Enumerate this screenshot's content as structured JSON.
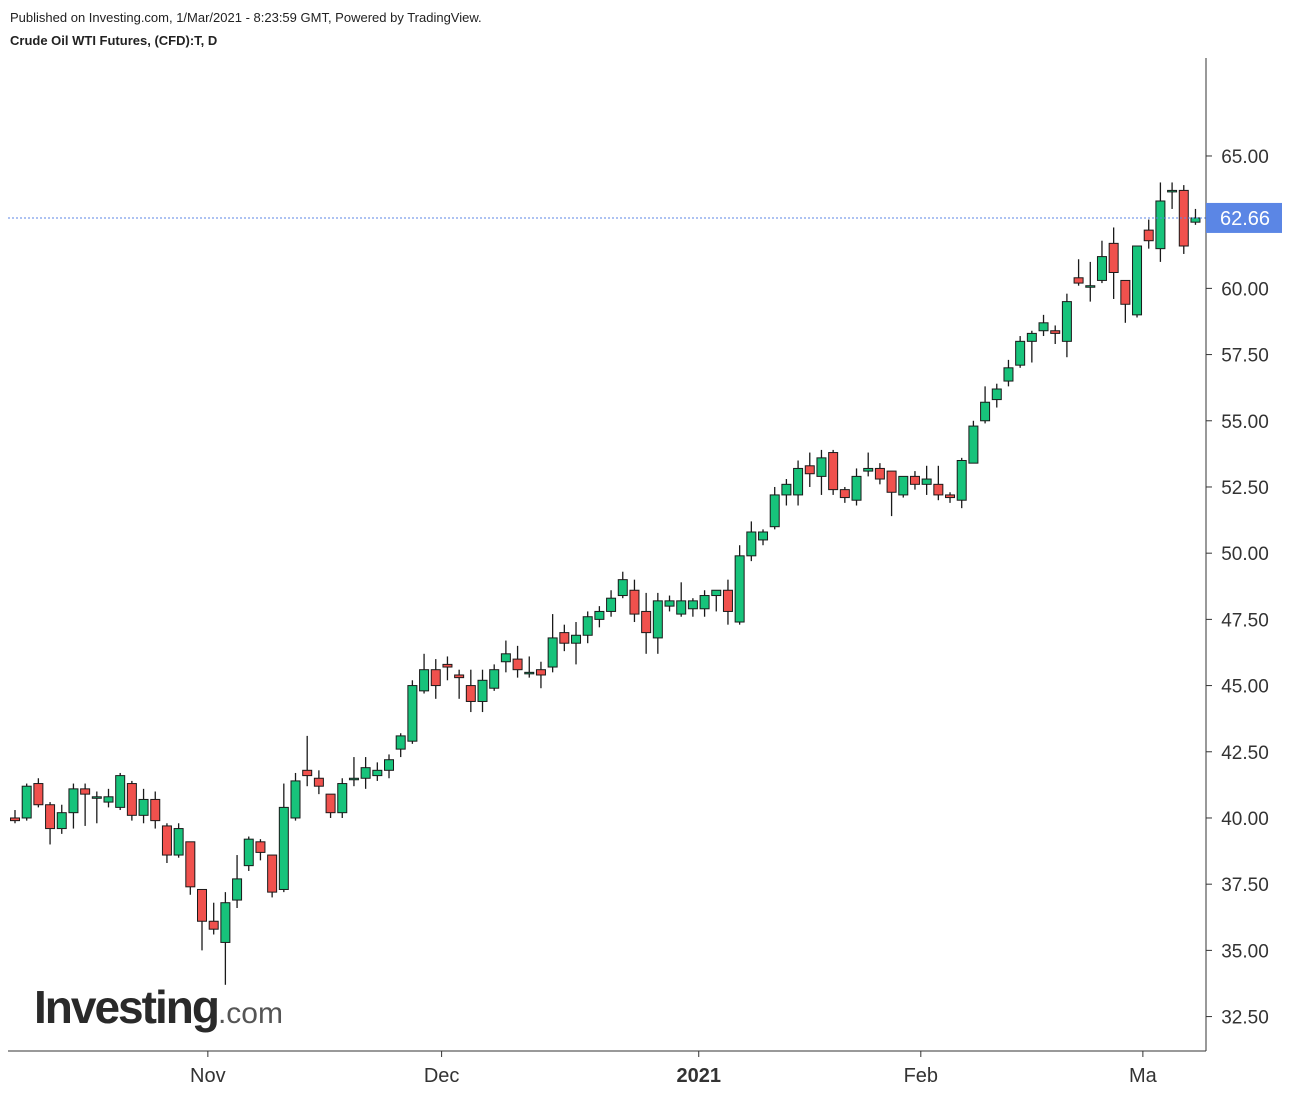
{
  "header": {
    "published": "Published on Investing.com, 1/Mar/2021 - 8:23:59 GMT, Powered by TradingView.",
    "symbol": "Crude Oil WTI Futures, (CFD):T, D"
  },
  "watermark": {
    "brand": "Investing",
    "suffix": ".com"
  },
  "colors": {
    "up": "#17c37b",
    "down": "#f0514d",
    "wick": "#1a1a1a",
    "price_line": "#5b86e5",
    "axis": "#333333"
  },
  "chart_data": {
    "type": "candlestick",
    "title": "Crude Oil WTI Futures, (CFD):T, D",
    "ylim": [
      31.2,
      68.7
    ],
    "y_ticks": [
      "32.50",
      "35.00",
      "37.50",
      "40.00",
      "42.50",
      "45.00",
      "47.50",
      "50.00",
      "52.50",
      "55.00",
      "57.50",
      "60.00",
      "62.50",
      "65.00"
    ],
    "x_labels": [
      {
        "label": "Nov",
        "index": 17,
        "bold": false
      },
      {
        "label": "Dec",
        "index": 37,
        "bold": false
      },
      {
        "label": "2021",
        "index": 59,
        "bold": true
      },
      {
        "label": "Feb",
        "index": 78,
        "bold": false
      },
      {
        "label": "Ma",
        "index": 97,
        "bold": false
      }
    ],
    "last_price": "62.66",
    "candles": [
      [
        40.0,
        40.3,
        39.8,
        39.9
      ],
      [
        40.0,
        41.3,
        39.9,
        41.2
      ],
      [
        41.3,
        41.5,
        40.4,
        40.5
      ],
      [
        40.5,
        40.6,
        39.0,
        39.6
      ],
      [
        39.6,
        40.5,
        39.4,
        40.2
      ],
      [
        40.2,
        41.3,
        39.6,
        41.1
      ],
      [
        41.1,
        41.3,
        39.7,
        40.9
      ],
      [
        40.8,
        41.0,
        39.8,
        40.8
      ],
      [
        40.6,
        41.1,
        40.4,
        40.8
      ],
      [
        40.4,
        41.7,
        40.3,
        41.6
      ],
      [
        41.3,
        41.4,
        39.9,
        40.1
      ],
      [
        40.1,
        41.1,
        39.8,
        40.7
      ],
      [
        40.7,
        41.0,
        39.6,
        39.9
      ],
      [
        39.7,
        39.8,
        38.3,
        38.6
      ],
      [
        38.6,
        39.8,
        38.5,
        39.6
      ],
      [
        39.1,
        39.1,
        37.1,
        37.4
      ],
      [
        37.3,
        37.3,
        35.0,
        36.1
      ],
      [
        36.1,
        36.8,
        35.6,
        35.8
      ],
      [
        35.3,
        37.2,
        33.7,
        36.8
      ],
      [
        36.9,
        38.6,
        36.6,
        37.7
      ],
      [
        38.2,
        39.3,
        38.0,
        39.2
      ],
      [
        39.1,
        39.2,
        38.4,
        38.7
      ],
      [
        38.6,
        38.6,
        37.0,
        37.2
      ],
      [
        37.3,
        41.3,
        37.2,
        40.4
      ],
      [
        40.0,
        41.7,
        39.9,
        41.4
      ],
      [
        41.8,
        43.1,
        41.2,
        41.6
      ],
      [
        41.5,
        41.8,
        40.9,
        41.2
      ],
      [
        40.9,
        40.9,
        40.0,
        40.2
      ],
      [
        40.2,
        41.5,
        40.0,
        41.3
      ],
      [
        41.5,
        42.3,
        41.2,
        41.5
      ],
      [
        41.5,
        42.3,
        41.1,
        41.9
      ],
      [
        41.6,
        42.1,
        41.4,
        41.8
      ],
      [
        41.8,
        42.4,
        41.5,
        42.2
      ],
      [
        42.6,
        43.2,
        42.3,
        43.1
      ],
      [
        42.9,
        45.2,
        42.8,
        45.0
      ],
      [
        44.8,
        46.2,
        44.7,
        45.6
      ],
      [
        45.6,
        46.0,
        44.5,
        45.0
      ],
      [
        45.8,
        46.1,
        45.2,
        45.7
      ],
      [
        45.4,
        45.6,
        44.5,
        45.3
      ],
      [
        45.0,
        45.6,
        44.0,
        44.4
      ],
      [
        44.4,
        45.6,
        44.0,
        45.2
      ],
      [
        44.9,
        45.8,
        44.8,
        45.6
      ],
      [
        45.9,
        46.7,
        45.5,
        46.2
      ],
      [
        46.0,
        46.5,
        45.3,
        45.6
      ],
      [
        45.5,
        46.1,
        45.3,
        45.5
      ],
      [
        45.6,
        45.9,
        44.9,
        45.4
      ],
      [
        45.7,
        47.7,
        45.5,
        46.8
      ],
      [
        47.0,
        47.3,
        46.3,
        46.6
      ],
      [
        46.6,
        47.4,
        45.8,
        46.9
      ],
      [
        46.9,
        47.8,
        46.6,
        47.6
      ],
      [
        47.5,
        48.0,
        47.2,
        47.8
      ],
      [
        47.8,
        48.6,
        47.6,
        48.3
      ],
      [
        48.4,
        49.3,
        48.3,
        49.0
      ],
      [
        48.6,
        49.0,
        47.4,
        47.7
      ],
      [
        47.8,
        48.5,
        46.2,
        47.0
      ],
      [
        46.8,
        48.5,
        46.2,
        48.2
      ],
      [
        48.0,
        48.4,
        47.8,
        48.2
      ],
      [
        47.7,
        48.9,
        47.6,
        48.2
      ],
      [
        47.9,
        48.3,
        47.6,
        48.2
      ],
      [
        47.9,
        48.6,
        47.6,
        48.4
      ],
      [
        48.4,
        48.6,
        47.8,
        48.6
      ],
      [
        48.6,
        49.0,
        47.3,
        47.8
      ],
      [
        47.4,
        50.3,
        47.3,
        49.9
      ],
      [
        49.9,
        51.2,
        49.7,
        50.8
      ],
      [
        50.5,
        50.9,
        50.3,
        50.8
      ],
      [
        51.0,
        52.5,
        50.9,
        52.2
      ],
      [
        52.2,
        52.8,
        51.8,
        52.6
      ],
      [
        52.2,
        53.5,
        51.8,
        53.2
      ],
      [
        53.3,
        53.8,
        52.5,
        53.0
      ],
      [
        52.9,
        53.9,
        52.2,
        53.6
      ],
      [
        53.8,
        53.9,
        52.2,
        52.4
      ],
      [
        52.4,
        52.5,
        51.9,
        52.1
      ],
      [
        52.0,
        53.2,
        51.8,
        52.9
      ],
      [
        53.1,
        53.8,
        52.9,
        53.2
      ],
      [
        53.2,
        53.4,
        52.6,
        52.8
      ],
      [
        53.1,
        53.1,
        51.4,
        52.3
      ],
      [
        52.2,
        52.9,
        52.1,
        52.9
      ],
      [
        52.9,
        53.1,
        52.4,
        52.6
      ],
      [
        52.6,
        53.3,
        52.2,
        52.8
      ],
      [
        52.6,
        53.3,
        52.0,
        52.2
      ],
      [
        52.2,
        52.3,
        51.9,
        52.1
      ],
      [
        52.0,
        53.6,
        51.7,
        53.5
      ],
      [
        53.4,
        55.0,
        53.4,
        54.8
      ],
      [
        55.0,
        56.3,
        54.9,
        55.7
      ],
      [
        55.8,
        56.4,
        55.5,
        56.2
      ],
      [
        56.5,
        57.3,
        56.3,
        57.0
      ],
      [
        57.1,
        58.2,
        57.0,
        58.0
      ],
      [
        58.0,
        58.4,
        57.2,
        58.3
      ],
      [
        58.4,
        59.0,
        58.2,
        58.7
      ],
      [
        58.4,
        58.6,
        57.9,
        58.3
      ],
      [
        58.0,
        59.8,
        57.4,
        59.5
      ],
      [
        60.4,
        61.1,
        60.1,
        60.2
      ],
      [
        60.1,
        61.0,
        59.5,
        60.1
      ],
      [
        60.3,
        61.8,
        60.2,
        61.2
      ],
      [
        61.7,
        62.3,
        59.6,
        60.6
      ],
      [
        60.3,
        60.3,
        58.7,
        59.4
      ],
      [
        59.0,
        61.6,
        58.9,
        61.6
      ],
      [
        62.2,
        62.6,
        61.5,
        61.8
      ],
      [
        61.5,
        64.0,
        61.0,
        63.3
      ],
      [
        63.7,
        64.0,
        63.0,
        63.7
      ],
      [
        63.7,
        63.9,
        61.3,
        61.6
      ],
      [
        62.5,
        63.0,
        62.4,
        62.66
      ]
    ]
  }
}
